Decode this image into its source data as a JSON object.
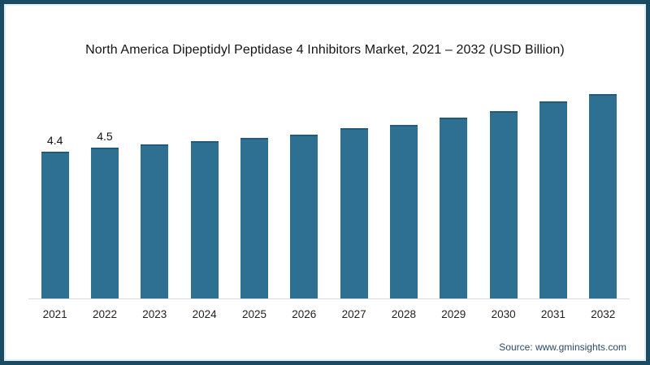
{
  "page": {
    "frame_color": "#1b4a63",
    "background": "#ffffff",
    "source_label": "Source: www.gminsights.com"
  },
  "chart": {
    "bar_color": "#2e7091",
    "bar_top_edge_color": "#225a77",
    "axis_color": "#d9d9d9",
    "title_color": "#141414"
  },
  "chart_data": {
    "type": "bar",
    "title": "North America Dipeptidyl Peptidase 4 Inhibitors Market, 2021 – 2032 (USD Billion)",
    "categories": [
      "2021",
      "2022",
      "2023",
      "2024",
      "2025",
      "2026",
      "2027",
      "2028",
      "2029",
      "2030",
      "2031",
      "2032"
    ],
    "values": [
      4.4,
      4.5,
      4.6,
      4.7,
      4.8,
      4.9,
      5.1,
      5.2,
      5.4,
      5.6,
      5.9,
      6.1
    ],
    "data_labels": [
      "4.4",
      "4.5",
      null,
      null,
      null,
      null,
      null,
      null,
      null,
      null,
      null,
      null
    ],
    "unit": "USD Billion",
    "xlabel": "",
    "ylabel": "",
    "ylim": [
      0,
      6.8
    ],
    "grid": false,
    "legend": "none"
  }
}
